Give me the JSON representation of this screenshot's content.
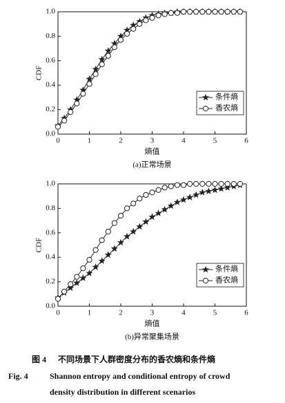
{
  "chart_data": [
    {
      "type": "line",
      "subtitle": "(a)正常场景",
      "x_label": "熵值",
      "y_label": "CDF",
      "x": [
        0,
        0.2,
        0.4,
        0.6,
        0.8,
        1,
        1.2,
        1.4,
        1.6,
        1.8,
        2,
        2.2,
        2.4,
        2.6,
        2.8,
        3,
        3.2,
        3.4,
        3.6,
        3.8,
        4,
        4.2,
        4.4,
        4.6,
        4.8,
        5,
        5.2,
        5.4,
        5.6,
        5.8
      ],
      "series": [
        {
          "name": "条件熵",
          "marker": "star",
          "color": "#222222",
          "values": [
            0.07,
            0.13,
            0.2,
            0.28,
            0.36,
            0.45,
            0.53,
            0.61,
            0.68,
            0.74,
            0.8,
            0.85,
            0.89,
            0.92,
            0.95,
            0.97,
            0.98,
            0.99,
            0.99,
            1,
            1,
            1,
            1,
            1,
            1,
            1,
            1,
            1,
            1,
            1
          ]
        },
        {
          "name": "香农熵",
          "marker": "circle",
          "color": "#222222",
          "values": [
            0.06,
            0.11,
            0.18,
            0.25,
            0.33,
            0.41,
            0.49,
            0.57,
            0.64,
            0.71,
            0.77,
            0.82,
            0.86,
            0.9,
            0.93,
            0.95,
            0.97,
            0.98,
            0.99,
            0.99,
            1,
            1,
            1,
            1,
            1,
            1,
            1,
            1,
            1,
            1
          ]
        }
      ],
      "xlim": [
        0,
        6
      ],
      "xticks": [
        0,
        1,
        2,
        3,
        4,
        5,
        6
      ],
      "ylim": [
        0,
        1
      ],
      "yticks": [
        {
          "value": 0,
          "label": "0.0"
        },
        0.2,
        0.4,
        0.6,
        0.8,
        {
          "value": 1,
          "label": "1.0"
        }
      ],
      "legend": "lower-right"
    },
    {
      "type": "line",
      "subtitle": "(b)异常聚集场景",
      "x_label": "熵值",
      "y_label": "CDF",
      "x": [
        0,
        0.2,
        0.4,
        0.6,
        0.8,
        1,
        1.2,
        1.4,
        1.6,
        1.8,
        2,
        2.2,
        2.4,
        2.6,
        2.8,
        3,
        3.2,
        3.4,
        3.6,
        3.8,
        4,
        4.2,
        4.4,
        4.6,
        4.8,
        5,
        5.2,
        5.4,
        5.6,
        5.8
      ],
      "series": [
        {
          "name": "条件熵",
          "marker": "star",
          "color": "#222222",
          "values": [
            0.07,
            0.11,
            0.15,
            0.19,
            0.23,
            0.27,
            0.32,
            0.37,
            0.42,
            0.47,
            0.52,
            0.57,
            0.61,
            0.65,
            0.69,
            0.73,
            0.76,
            0.79,
            0.82,
            0.85,
            0.87,
            0.89,
            0.91,
            0.93,
            0.94,
            0.95,
            0.96,
            0.97,
            0.98,
            0.99
          ]
        },
        {
          "name": "香农熵",
          "marker": "circle",
          "color": "#222222",
          "values": [
            0.06,
            0.12,
            0.18,
            0.24,
            0.31,
            0.38,
            0.46,
            0.54,
            0.61,
            0.68,
            0.74,
            0.8,
            0.84,
            0.88,
            0.91,
            0.93,
            0.95,
            0.97,
            0.98,
            0.99,
            0.99,
            1,
            1,
            1,
            1,
            1,
            1,
            1,
            1,
            1
          ]
        }
      ],
      "xlim": [
        0,
        6
      ],
      "xticks": [
        0,
        1,
        2,
        3,
        4,
        5,
        6
      ],
      "ylim": [
        0,
        1
      ],
      "yticks": [
        {
          "value": 0,
          "label": "0.0"
        },
        0.2,
        0.4,
        0.6,
        0.8,
        {
          "value": 1,
          "label": "1.0"
        }
      ],
      "legend": "lower-right"
    }
  ],
  "caption": {
    "cn_number": "图 4",
    "cn_text": "不同场景下人群密度分布的香农熵和条件熵",
    "en_number": "Fig. 4",
    "en_line1": "Shannon entropy and conditional entropy of crowd",
    "en_line2": "density distribution in different scenarios"
  }
}
